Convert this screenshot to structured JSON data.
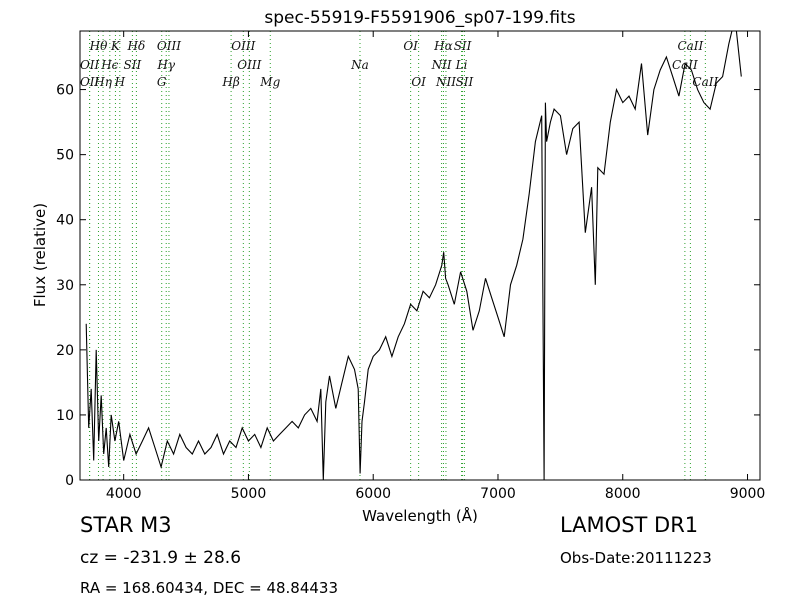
{
  "chart_data": {
    "type": "line",
    "title": "spec-55919-F5591906_sp07-199.fits",
    "xlabel": "Wavelength (Å)",
    "ylabel": "Flux (relative)",
    "xlim": [
      3650,
      9100
    ],
    "ylim": [
      0,
      69
    ],
    "xticks": [
      4000,
      5000,
      6000,
      7000,
      8000,
      9000
    ],
    "yticks": [
      0,
      10,
      20,
      30,
      40,
      50,
      60
    ],
    "grid": false,
    "series": [
      {
        "color": "#000000",
        "x": [
          3700,
          3720,
          3740,
          3760,
          3780,
          3800,
          3820,
          3840,
          3860,
          3880,
          3900,
          3930,
          3960,
          4000,
          4050,
          4100,
          4150,
          4200,
          4250,
          4300,
          4350,
          4400,
          4450,
          4500,
          4550,
          4600,
          4650,
          4700,
          4750,
          4800,
          4850,
          4900,
          4950,
          5000,
          5050,
          5100,
          5150,
          5200,
          5250,
          5300,
          5350,
          5400,
          5450,
          5500,
          5550,
          5580,
          5600,
          5620,
          5650,
          5700,
          5750,
          5800,
          5850,
          5880,
          5895,
          5910,
          5930,
          5960,
          6000,
          6050,
          6100,
          6150,
          6200,
          6250,
          6300,
          6350,
          6400,
          6450,
          6500,
          6550,
          6565,
          6580,
          6600,
          6650,
          6700,
          6750,
          6800,
          6850,
          6900,
          6950,
          7000,
          7050,
          7100,
          7150,
          7200,
          7250,
          7300,
          7350,
          7370,
          7380,
          7390,
          7420,
          7450,
          7500,
          7550,
          7600,
          7650,
          7700,
          7750,
          7780,
          7800,
          7850,
          7900,
          7950,
          8000,
          8050,
          8100,
          8150,
          8200,
          8250,
          8300,
          8350,
          8400,
          8450,
          8500,
          8550,
          8600,
          8650,
          8700,
          8750,
          8800,
          8850,
          8900,
          8950
        ],
        "y": [
          24,
          8,
          14,
          3,
          20,
          6,
          13,
          4,
          8,
          2,
          10,
          6,
          9,
          3,
          7,
          4,
          6,
          8,
          5,
          2,
          6,
          4,
          7,
          5,
          4,
          6,
          4,
          5,
          7,
          4,
          6,
          5,
          8,
          6,
          7,
          5,
          8,
          6,
          7,
          8,
          9,
          8,
          10,
          11,
          9,
          14,
          0,
          12,
          16,
          11,
          15,
          19,
          17,
          14,
          1,
          9,
          12,
          17,
          19,
          20,
          22,
          19,
          22,
          24,
          27,
          26,
          29,
          28,
          30,
          33,
          35,
          31,
          30,
          27,
          32,
          29,
          23,
          26,
          31,
          28,
          25,
          22,
          30,
          33,
          37,
          44,
          52,
          56,
          0,
          58,
          52,
          55,
          57,
          56,
          50,
          54,
          55,
          38,
          45,
          30,
          48,
          47,
          55,
          60,
          58,
          59,
          57,
          64,
          53,
          60,
          63,
          65,
          62,
          59,
          64,
          63,
          60,
          58,
          57,
          61,
          62,
          67,
          71,
          62
        ]
      }
    ],
    "spectral_lines": [
      {
        "label": "Hθ",
        "x": 3798,
        "row": 0
      },
      {
        "label": "K",
        "x": 3934,
        "row": 0
      },
      {
        "label": "Hδ",
        "x": 4102,
        "row": 0
      },
      {
        "label": "OIII",
        "x": 4363,
        "row": 0
      },
      {
        "label": "OII",
        "x": 3727,
        "row": 1
      },
      {
        "label": "Hϵ",
        "x": 3889,
        "row": 1
      },
      {
        "label": "SII",
        "x": 4070,
        "row": 1
      },
      {
        "label": "OII",
        "x": 3727,
        "row": 2
      },
      {
        "label": "Hη",
        "x": 3835,
        "row": 2
      },
      {
        "label": "H",
        "x": 3969,
        "row": 2
      },
      {
        "label": "Hγ",
        "x": 4341,
        "row": 1
      },
      {
        "label": "G",
        "x": 4305,
        "row": 2
      },
      {
        "label": "OIII",
        "x": 4959,
        "row": 0
      },
      {
        "label": "Hβ",
        "x": 4861,
        "row": 2
      },
      {
        "label": "OIII",
        "x": 5007,
        "row": 1
      },
      {
        "label": "Mg",
        "x": 5175,
        "row": 2
      },
      {
        "label": "Na",
        "x": 5894,
        "row": 1
      },
      {
        "label": "OI",
        "x": 6300,
        "row": 0
      },
      {
        "label": "OI",
        "x": 6364,
        "row": 2
      },
      {
        "label": "Hα",
        "x": 6563,
        "row": 0
      },
      {
        "label": "SII",
        "x": 6716,
        "row": 0
      },
      {
        "label": "NII",
        "x": 6548,
        "row": 1
      },
      {
        "label": "Li",
        "x": 6708,
        "row": 1
      },
      {
        "label": "NII",
        "x": 6583,
        "row": 2
      },
      {
        "label": "SII",
        "x": 6731,
        "row": 2
      },
      {
        "label": "CaII",
        "x": 8542,
        "row": 0
      },
      {
        "label": "CaII",
        "x": 8498,
        "row": 1
      },
      {
        "label": "CaII",
        "x": 8662,
        "row": 2
      }
    ],
    "line_color": "#2ca02c"
  },
  "info": {
    "class_label": "STAR   M3",
    "survey": "LAMOST DR1",
    "redshift": "cz = -231.9  ± 28.6",
    "obs_date": "Obs-Date:20111223",
    "coords": "RA = 168.60434, DEC = 48.84433"
  }
}
